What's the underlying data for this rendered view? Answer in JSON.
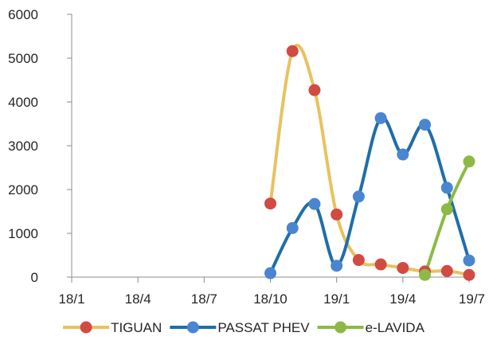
{
  "chart_data": {
    "type": "line",
    "title": "",
    "xlabel": "",
    "ylabel": "",
    "ylim": [
      0,
      6000
    ],
    "yticks": [
      0,
      1000,
      2000,
      3000,
      4000,
      5000,
      6000
    ],
    "x_range": [
      "2018-01",
      "2019-07"
    ],
    "xticks": [
      {
        "x": "2018-01",
        "label": "18/1"
      },
      {
        "x": "2018-04",
        "label": "18/4"
      },
      {
        "x": "2018-07",
        "label": "18/7"
      },
      {
        "x": "2018-10",
        "label": "18/10"
      },
      {
        "x": "2019-01",
        "label": "19/1"
      },
      {
        "x": "2019-04",
        "label": "19/4"
      },
      {
        "x": "2019-07",
        "label": "19/7"
      }
    ],
    "grid": false,
    "smooth": true,
    "legend_position": "bottom",
    "series": [
      {
        "name": "TIGUAN",
        "line_color": "#E8C25E",
        "marker_color": "#D14B43",
        "points": [
          {
            "x": "2018-10",
            "y": 1680
          },
          {
            "x": "2018-11",
            "y": 5160
          },
          {
            "x": "2018-12",
            "y": 4270
          },
          {
            "x": "2019-01",
            "y": 1430
          },
          {
            "x": "2019-02",
            "y": 390
          },
          {
            "x": "2019-03",
            "y": 290
          },
          {
            "x": "2019-04",
            "y": 210
          },
          {
            "x": "2019-05",
            "y": 130
          },
          {
            "x": "2019-06",
            "y": 140
          },
          {
            "x": "2019-07",
            "y": 50
          }
        ]
      },
      {
        "name": "PASSAT PHEV",
        "line_color": "#1F6EA8",
        "marker_color": "#4A86CF",
        "points": [
          {
            "x": "2018-10",
            "y": 90
          },
          {
            "x": "2018-11",
            "y": 1120
          },
          {
            "x": "2018-12",
            "y": 1670
          },
          {
            "x": "2019-01",
            "y": 260
          },
          {
            "x": "2019-02",
            "y": 1840
          },
          {
            "x": "2019-03",
            "y": 3630
          },
          {
            "x": "2019-04",
            "y": 2800
          },
          {
            "x": "2019-05",
            "y": 3480
          },
          {
            "x": "2019-06",
            "y": 2040
          },
          {
            "x": "2019-07",
            "y": 380
          }
        ]
      },
      {
        "name": "e-LAVIDA",
        "line_color": "#8DBA46",
        "marker_color": "#8DBA46",
        "points": [
          {
            "x": "2019-05",
            "y": 50
          },
          {
            "x": "2019-06",
            "y": 1550
          },
          {
            "x": "2019-07",
            "y": 2640
          }
        ]
      }
    ]
  }
}
